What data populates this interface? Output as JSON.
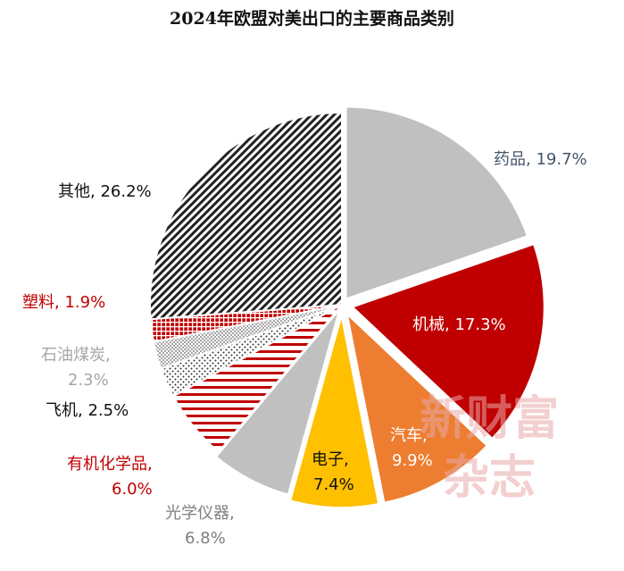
{
  "chart_data": {
    "type": "pie",
    "title": "2024年欧盟对美出口的主要商品类别",
    "slices": [
      {
        "label": "药品",
        "value": 19.7,
        "value_label": "19.7%",
        "color": "#c0c0c0",
        "pattern": "solid",
        "text_color": "#44546a"
      },
      {
        "label": "机械",
        "value": 17.3,
        "value_label": "17.3%",
        "color": "#c00000",
        "pattern": "solid",
        "text_color": "#ffffff"
      },
      {
        "label": "汽车",
        "value": 9.9,
        "value_label": "9.9%",
        "color": "#ed7d31",
        "pattern": "solid",
        "text_color": "#ffffff"
      },
      {
        "label": "电子",
        "value": 7.4,
        "value_label": "7.4%",
        "color": "#ffc000",
        "pattern": "solid",
        "text_color": "#111111"
      },
      {
        "label": "光学仪器",
        "value": 6.8,
        "value_label": "6.8%",
        "color": "#c0c0c0",
        "pattern": "solid",
        "text_color": "#7f7f7f"
      },
      {
        "label": "有机化学品",
        "value": 6.0,
        "value_label": "6.0%",
        "color": "#c00000",
        "pattern": "hstripe",
        "text_color": "#c00000"
      },
      {
        "label": "飞机",
        "value": 2.5,
        "value_label": "2.5%",
        "color": "#333333",
        "pattern": "dots",
        "text_color": "#111111"
      },
      {
        "label": "石油煤炭",
        "value": 2.3,
        "value_label": "2.3%",
        "color": "#a6a6a6",
        "pattern": "checker",
        "text_color": "#a6a6a6"
      },
      {
        "label": "塑料",
        "value": 1.9,
        "value_label": "1.9%",
        "color": "#c00000",
        "pattern": "grid",
        "text_color": "#c00000"
      },
      {
        "label": "其他",
        "value": 26.2,
        "value_label": "26.2%",
        "color": "#222222",
        "pattern": "diag",
        "text_color": "#111111"
      }
    ]
  },
  "watermark": {
    "line1": "新财富",
    "line2": "杂志",
    "color": "#e9aaa8"
  }
}
